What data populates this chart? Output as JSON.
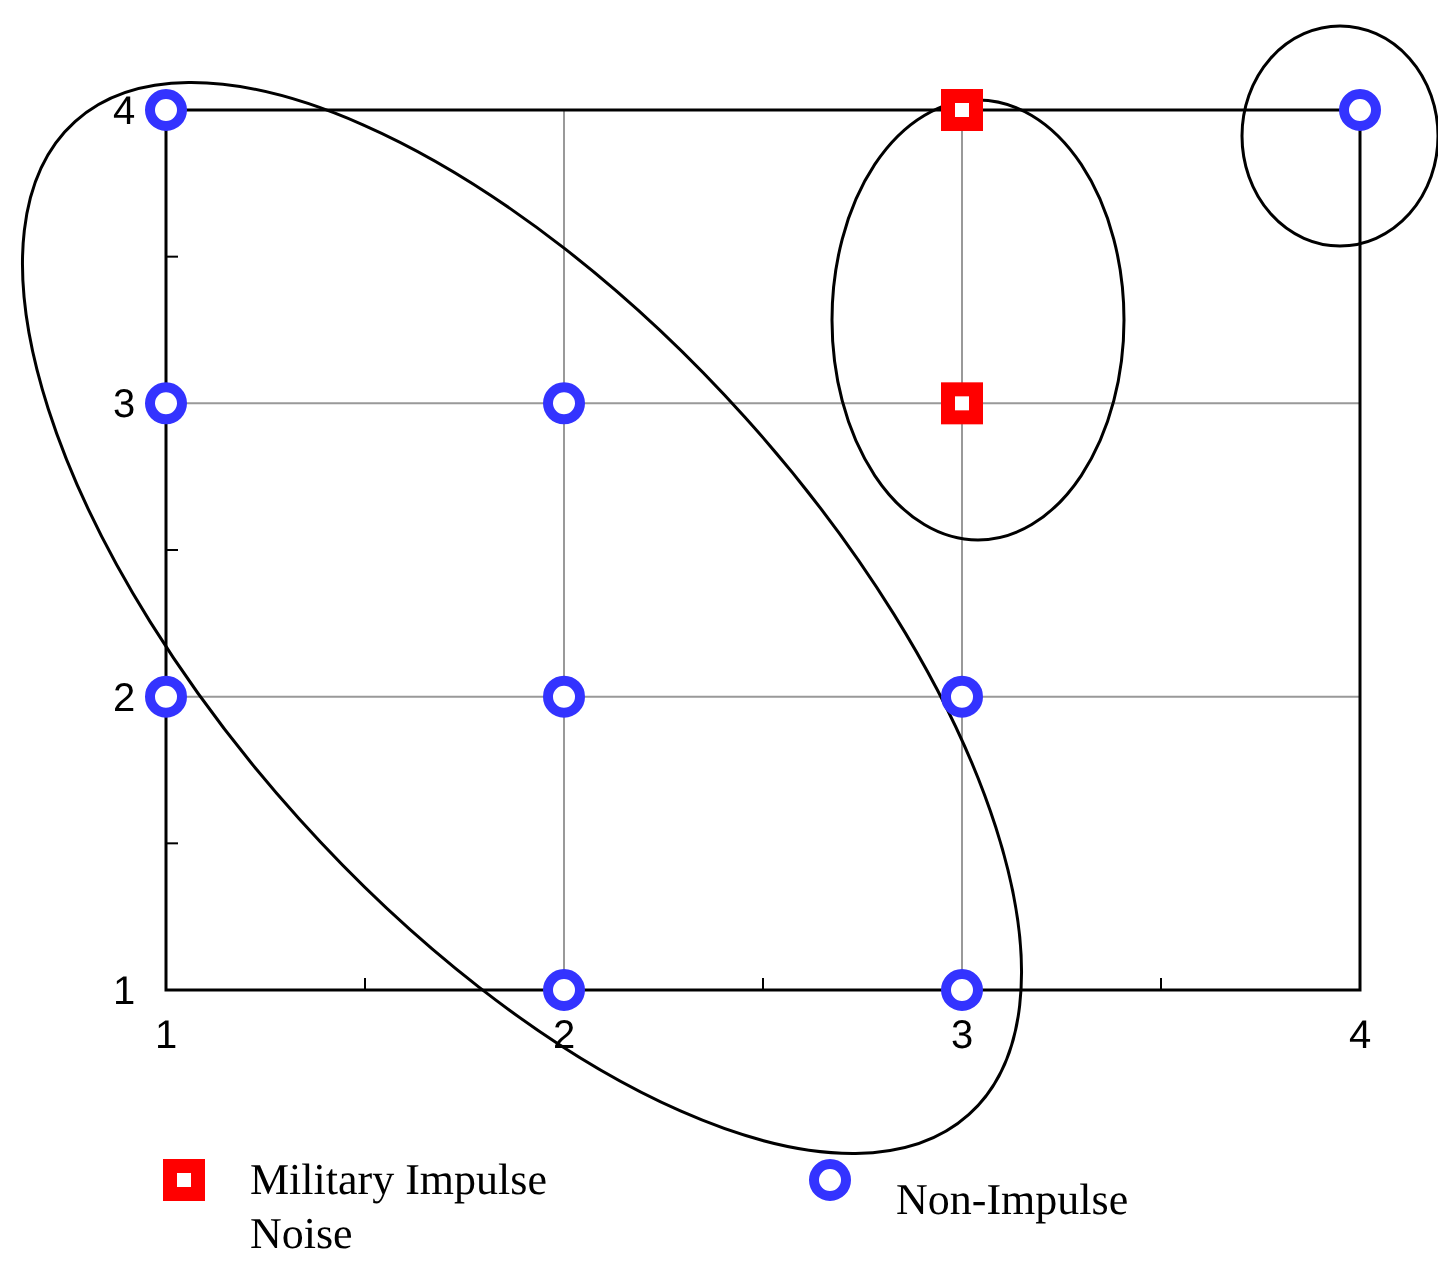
{
  "chart_data": {
    "type": "scatter",
    "xlim": [
      1,
      4
    ],
    "ylim": [
      1,
      4
    ],
    "xticks": [
      1,
      {
        "value": 1.5,
        "label": null
      },
      2,
      {
        "value": 2.5,
        "label": null
      },
      3,
      {
        "value": 3.5,
        "label": null
      },
      4
    ],
    "yticks": [
      1,
      {
        "value": 1.5,
        "label": null
      },
      2,
      {
        "value": 2.5,
        "label": null
      },
      3,
      {
        "value": 3.5,
        "label": null
      },
      4
    ],
    "grid": true,
    "legend": "bottom",
    "series": [
      {
        "name": "Military Impulse Noise",
        "color": "#ff0000",
        "marker": "square",
        "x": [
          3,
          3
        ],
        "values": [
          4,
          3
        ]
      },
      {
        "name": "Non-Impulse",
        "color": "#3333ff",
        "marker": "circle",
        "x": [
          1,
          1,
          2,
          1,
          2,
          3,
          2,
          3,
          4
        ],
        "values": [
          4,
          3,
          3,
          2,
          2,
          2,
          1,
          1,
          4
        ]
      }
    ]
  }
}
